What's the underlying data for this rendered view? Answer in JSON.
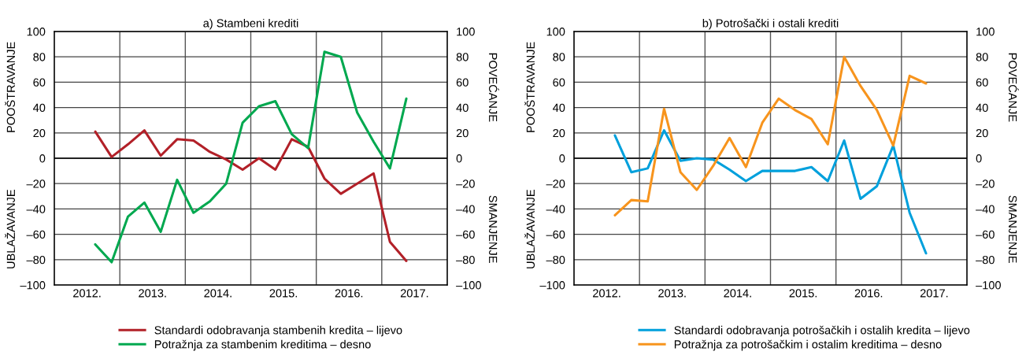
{
  "chart_data": [
    {
      "type": "line",
      "title": "a) Stambeni krediti",
      "annotations": [
        "POOŠTRAVANJE",
        "UBLAŽAVANJE",
        "POVEĆANJE",
        "SMANJENJE"
      ],
      "x": [
        2012.625,
        2012.875,
        2013.125,
        2013.375,
        2013.625,
        2013.875,
        2014.125,
        2014.375,
        2014.625,
        2014.875,
        2015.125,
        2015.375,
        2015.625,
        2015.875,
        2016.125,
        2016.375,
        2016.625,
        2016.875,
        2017.125,
        2017.375
      ],
      "series": [
        {
          "name": "Standardi odobravanja stambenih kredita – lijevo",
          "color": "#b22028",
          "values": [
            21,
            1,
            11,
            22,
            2,
            15,
            14,
            5,
            -1,
            -9,
            0,
            -9,
            15,
            9,
            -16,
            -28,
            -20,
            -12,
            -66,
            -81
          ]
        },
        {
          "name": "Potražnja za stambenim kreditima – desno",
          "color": "#00a84f",
          "values": [
            -68,
            -82,
            -46,
            -35,
            -58,
            -17,
            -43,
            -34,
            -20,
            28,
            41,
            45,
            19,
            8,
            84,
            80,
            36,
            13,
            -8,
            47
          ]
        }
      ],
      "xlim": [
        2012,
        2018
      ],
      "xticks": [
        {
          "value": 2012.5,
          "label": "2012."
        },
        {
          "value": 2013,
          "label": null
        },
        {
          "value": 2013.5,
          "label": "2013."
        },
        {
          "value": 2014,
          "label": null
        },
        {
          "value": 2014.5,
          "label": "2014."
        },
        {
          "value": 2015,
          "label": null
        },
        {
          "value": 2015.5,
          "label": "2015."
        },
        {
          "value": 2016,
          "label": null
        },
        {
          "value": 2016.5,
          "label": "2016."
        },
        {
          "value": 2017,
          "label": null
        },
        {
          "value": 2017.5,
          "label": "2017."
        }
      ],
      "ylim": [
        -100,
        100
      ],
      "yticks": [
        {
          "value": -100,
          "label": "–100"
        },
        {
          "value": -80,
          "label": "–80"
        },
        {
          "value": -60,
          "label": "–60"
        },
        {
          "value": -40,
          "label": "–40"
        },
        {
          "value": -20,
          "label": "–20"
        },
        0,
        20,
        40,
        60,
        80,
        100
      ],
      "y2lim": [
        -100,
        100
      ],
      "y2ticks": [
        {
          "value": -100,
          "label": "–100"
        },
        {
          "value": -80,
          "label": "–80"
        },
        {
          "value": -60,
          "label": "–60"
        },
        {
          "value": -40,
          "label": "–40"
        },
        {
          "value": -20,
          "label": "–20"
        },
        0,
        20,
        40,
        60,
        80,
        100
      ],
      "grid": true,
      "legend": "bottom"
    },
    {
      "type": "line",
      "title": "b) Potrošački i ostali krediti",
      "annotations": [
        "POOŠTRAVANJE",
        "UBLAŽAVANJE",
        "POVEĆANJE",
        "SMANJENJE"
      ],
      "x": [
        2012.625,
        2012.875,
        2013.125,
        2013.375,
        2013.625,
        2013.875,
        2014.125,
        2014.375,
        2014.625,
        2014.875,
        2015.125,
        2015.375,
        2015.625,
        2015.875,
        2016.125,
        2016.375,
        2016.625,
        2016.875,
        2017.125,
        2017.375
      ],
      "series": [
        {
          "name": "Standardi odobravanja potrošačkih i ostalih kredita – lijevo",
          "color": "#00a0dc",
          "values": [
            18,
            -11,
            -8,
            22,
            -2,
            0,
            -1,
            -9,
            -18,
            -10,
            -10,
            -10,
            -7,
            -18,
            14,
            -32,
            -22,
            10,
            -43,
            -75
          ]
        },
        {
          "name": "Potražnja za potrošačkim i ostalim kreditima – desno",
          "color": "#f7941d",
          "values": [
            -45,
            -33,
            -34,
            39,
            -11,
            -25,
            -6,
            16,
            -7,
            28,
            47,
            38,
            31,
            11,
            80,
            57,
            38,
            10,
            65,
            59
          ]
        }
      ],
      "xlim": [
        2012,
        2018
      ],
      "xticks": [
        {
          "value": 2012.5,
          "label": "2012."
        },
        {
          "value": 2013,
          "label": null
        },
        {
          "value": 2013.5,
          "label": "2013."
        },
        {
          "value": 2014,
          "label": null
        },
        {
          "value": 2014.5,
          "label": "2014."
        },
        {
          "value": 2015,
          "label": null
        },
        {
          "value": 2015.5,
          "label": "2015."
        },
        {
          "value": 2016,
          "label": null
        },
        {
          "value": 2016.5,
          "label": "2016."
        },
        {
          "value": 2017,
          "label": null
        },
        {
          "value": 2017.5,
          "label": "2017."
        }
      ],
      "ylim": [
        -100,
        100
      ],
      "yticks": [
        {
          "value": -100,
          "label": "–100"
        },
        {
          "value": -80,
          "label": "–80"
        },
        {
          "value": -60,
          "label": "–60"
        },
        {
          "value": -40,
          "label": "–40"
        },
        {
          "value": -20,
          "label": "–20"
        },
        0,
        20,
        40,
        60,
        80,
        100
      ],
      "y2lim": [
        -100,
        100
      ],
      "y2ticks": [
        {
          "value": -100,
          "label": "–100"
        },
        {
          "value": -80,
          "label": "–80"
        },
        {
          "value": -60,
          "label": "–60"
        },
        {
          "value": -40,
          "label": "–40"
        },
        {
          "value": -20,
          "label": "–20"
        },
        0,
        20,
        40,
        60,
        80,
        100
      ],
      "grid": true,
      "legend": "bottom"
    }
  ]
}
